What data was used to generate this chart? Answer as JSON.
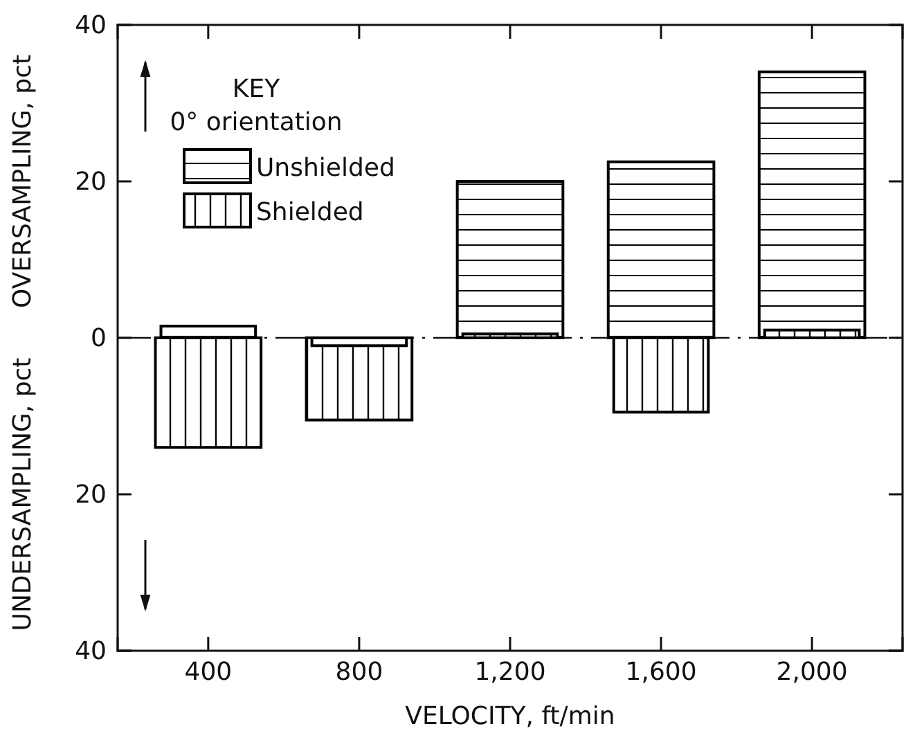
{
  "chart_data": {
    "type": "bar",
    "xlabel": "VELOCITY, ft/min",
    "ylabel": "OVERSAMPLING, pct",
    "legend_title": "KEY",
    "annotations": [
      "0° orientation",
      "UNDERSAMPLING, pct"
    ],
    "categories": [
      "400",
      "800",
      "1,200",
      "1,600",
      "2,000"
    ],
    "series": [
      {
        "name": "Unshielded",
        "color": "#000000",
        "values": [
          1.5,
          -1,
          20,
          22.5,
          34
        ]
      },
      {
        "name": "Shielded",
        "color": "#000000",
        "values": [
          -14,
          -10.5,
          0.5,
          -9.5,
          1
        ]
      }
    ],
    "ylim": [
      -40,
      40
    ],
    "yticks": [
      {
        "value": -40,
        "label": "40"
      },
      {
        "value": -20,
        "label": "20"
      },
      0,
      20,
      40
    ],
    "ref_lines": [
      {
        "axis": "y",
        "value": 0
      }
    ],
    "grid": false,
    "legend": "top left"
  }
}
